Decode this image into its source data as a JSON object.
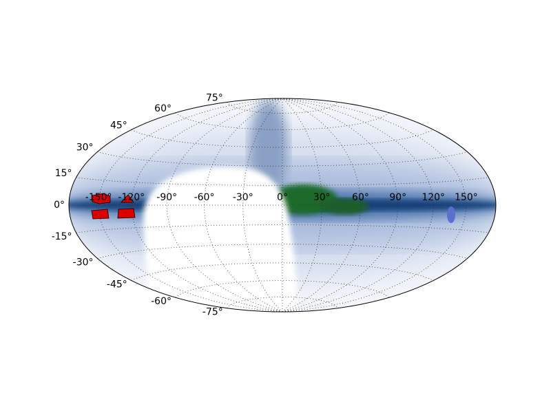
{
  "map": {
    "projection": "hammer",
    "longitude_ticks": [
      {
        "value": -150,
        "label": "-150°"
      },
      {
        "value": -120,
        "label": "-120°"
      },
      {
        "value": -90,
        "label": "-90°"
      },
      {
        "value": -60,
        "label": "-60°"
      },
      {
        "value": -30,
        "label": "-30°"
      },
      {
        "value": 0,
        "label": "0°"
      },
      {
        "value": 30,
        "label": "30°"
      },
      {
        "value": 60,
        "label": "60°"
      },
      {
        "value": 90,
        "label": "90°"
      },
      {
        "value": 120,
        "label": "120°"
      },
      {
        "value": 150,
        "label": "150°"
      }
    ],
    "latitude_ticks": [
      {
        "value": -75,
        "label": "-75°"
      },
      {
        "value": -60,
        "label": "-60°"
      },
      {
        "value": -45,
        "label": "-45°"
      },
      {
        "value": -30,
        "label": "-30°"
      },
      {
        "value": -15,
        "label": "-15°"
      },
      {
        "value": 0,
        "label": "0°"
      },
      {
        "value": 15,
        "label": "15°"
      },
      {
        "value": 30,
        "label": "30°"
      },
      {
        "value": 45,
        "label": "45°"
      },
      {
        "value": 60,
        "label": "60°"
      },
      {
        "value": 75,
        "label": "75°"
      }
    ]
  }
}
